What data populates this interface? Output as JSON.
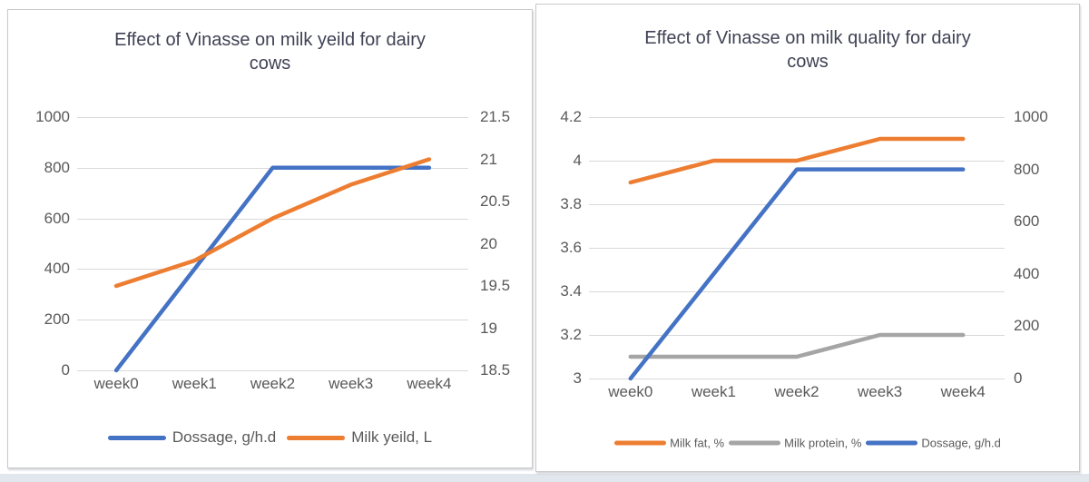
{
  "chart_data": [
    {
      "type": "line",
      "title": "Effect of Vinasse on milk yeild for dairy cows",
      "categories": [
        "week0",
        "week1",
        "week2",
        "week3",
        "week4"
      ],
      "series": [
        {
          "name": "Dossage, g/h.d",
          "axis": "left",
          "color": "#4472C4",
          "values": [
            0,
            400,
            800,
            800,
            800
          ]
        },
        {
          "name": "Milk yeild, L",
          "axis": "right",
          "color": "#ED7D31",
          "values": [
            19.5,
            19.8,
            20.3,
            20.7,
            21
          ]
        }
      ],
      "left_axis": {
        "min": 0,
        "max": 1000,
        "ticks": [
          0,
          200,
          400,
          600,
          800,
          1000
        ]
      },
      "right_axis": {
        "min": 18.5,
        "max": 21.5,
        "ticks": [
          18.5,
          19,
          19.5,
          20,
          20.5,
          21,
          21.5
        ]
      },
      "grid": true,
      "legend_position": "bottom"
    },
    {
      "type": "line",
      "title": "Effect of Vinasse on milk quality for dairy cows",
      "categories": [
        "week0",
        "week1",
        "week2",
        "week3",
        "week4"
      ],
      "series": [
        {
          "name": "Milk fat, %",
          "axis": "left",
          "color": "#ED7D31",
          "values": [
            3.9,
            4,
            4,
            4.1,
            4.1
          ]
        },
        {
          "name": "Milk protein, %",
          "axis": "left",
          "color": "#A5A5A5",
          "values": [
            3.1,
            3.1,
            3.1,
            3.2,
            3.2
          ]
        },
        {
          "name": "Dossage, g/h.d",
          "axis": "right",
          "color": "#4472C4",
          "values": [
            0,
            400,
            800,
            800,
            800
          ]
        }
      ],
      "left_axis": {
        "min": 3,
        "max": 4.2,
        "ticks": [
          3,
          3.2,
          3.4,
          3.6,
          3.8,
          4,
          4.2
        ]
      },
      "right_axis": {
        "min": 0,
        "max": 1000,
        "ticks": [
          0,
          200,
          400,
          600,
          800,
          1000
        ]
      },
      "grid": true,
      "legend_position": "bottom"
    }
  ]
}
